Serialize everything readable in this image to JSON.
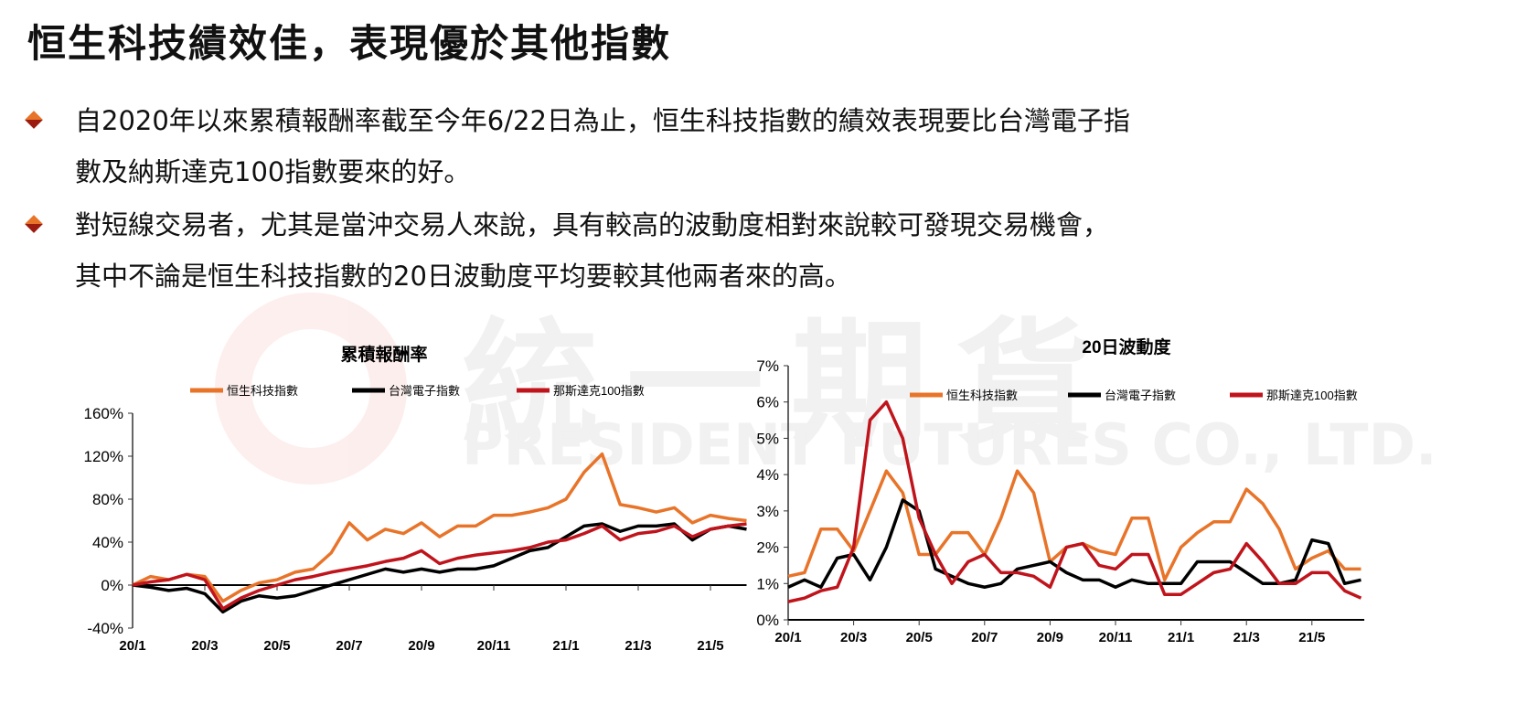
{
  "title": "恒生科技績效佳，表現優於其他指數",
  "bullets": [
    {
      "lines": [
        "自2020年以來累積報酬率截至今年6/22日為止，恒生科技指數的績效表現要比台灣電子指",
        "數及納斯達克100指數要來的好。"
      ]
    },
    {
      "lines": [
        "對短線交易者，尤其是當沖交易人來說，具有較高的波動度相對來說較可發現交易機會，",
        "其中不論是恒生科技指數的20日波動度平均要較其他兩者來的高。"
      ]
    }
  ],
  "watermark": {
    "cn": "統一期貨",
    "en": "PRESIDENT FUTURES CO., LTD."
  },
  "chart_data": [
    {
      "type": "line",
      "title": "累積報酬率",
      "xlabel": "",
      "ylabel": "",
      "x_start": "2020/1",
      "x_step_months": 0.5,
      "xticks": [
        "20/1",
        "20/3",
        "20/5",
        "20/7",
        "20/9",
        "20/11",
        "21/1",
        "21/3",
        "21/5"
      ],
      "yticks": [
        "-40%",
        "0%",
        "40%",
        "80%",
        "120%",
        "160%"
      ],
      "ylim": [
        -40,
        160
      ],
      "legend": "top",
      "series": [
        {
          "name": "恒生科技指數",
          "color": "#e8742a",
          "values": [
            0,
            8,
            5,
            10,
            8,
            -15,
            -5,
            2,
            5,
            12,
            15,
            30,
            58,
            42,
            52,
            48,
            58,
            45,
            55,
            55,
            65,
            65,
            68,
            72,
            80,
            105,
            122,
            75,
            72,
            68,
            72,
            58,
            65,
            62,
            60
          ]
        },
        {
          "name": "台灣電子指數",
          "color": "#000000",
          "values": [
            0,
            -2,
            -5,
            -3,
            -8,
            -25,
            -15,
            -10,
            -12,
            -10,
            -5,
            0,
            5,
            10,
            15,
            12,
            15,
            12,
            15,
            15,
            18,
            25,
            32,
            35,
            45,
            55,
            57,
            50,
            55,
            55,
            57,
            42,
            52,
            55,
            52
          ]
        },
        {
          "name": "那斯達克100指數",
          "color": "#c0141c",
          "values": [
            0,
            3,
            5,
            10,
            5,
            -22,
            -12,
            -5,
            0,
            5,
            8,
            12,
            15,
            18,
            22,
            25,
            32,
            20,
            25,
            28,
            30,
            32,
            35,
            40,
            42,
            48,
            55,
            42,
            48,
            50,
            55,
            45,
            52,
            55,
            57
          ]
        }
      ]
    },
    {
      "type": "line",
      "title": "20日波動度",
      "xlabel": "",
      "ylabel": "",
      "x_start": "2020/1",
      "x_step_months": 0.5,
      "xticks": [
        "20/1",
        "20/3",
        "20/5",
        "20/7",
        "20/9",
        "20/11",
        "21/1",
        "21/3",
        "21/5"
      ],
      "yticks": [
        "0%",
        "1%",
        "2%",
        "3%",
        "4%",
        "5%",
        "6%",
        "7%"
      ],
      "ylim": [
        0,
        7
      ],
      "legend": "top",
      "series": [
        {
          "name": "恒生科技指數",
          "color": "#e8742a",
          "values": [
            1.2,
            1.3,
            2.5,
            2.5,
            1.9,
            3.0,
            4.1,
            3.5,
            1.8,
            1.8,
            2.4,
            2.4,
            1.8,
            2.8,
            4.1,
            3.5,
            1.6,
            2.0,
            2.1,
            1.9,
            1.8,
            2.8,
            2.8,
            1.1,
            2.0,
            2.4,
            2.7,
            2.7,
            3.6,
            3.2,
            2.5,
            1.4,
            1.7,
            1.9,
            1.4,
            1.4
          ]
        },
        {
          "name": "台灣電子指數",
          "color": "#000000",
          "values": [
            0.9,
            1.1,
            0.9,
            1.7,
            1.8,
            1.1,
            2.0,
            3.3,
            3.0,
            1.4,
            1.2,
            1.0,
            0.9,
            1.0,
            1.4,
            1.5,
            1.6,
            1.3,
            1.1,
            1.1,
            0.9,
            1.1,
            1.0,
            1.0,
            1.0,
            1.6,
            1.6,
            1.6,
            1.3,
            1.0,
            1.0,
            1.1,
            2.2,
            2.1,
            1.0,
            1.1
          ]
        },
        {
          "name": "那斯達克100指數",
          "color": "#c0141c",
          "values": [
            0.5,
            0.6,
            0.8,
            0.9,
            2.0,
            5.5,
            6.0,
            5.0,
            2.8,
            1.8,
            1.0,
            1.6,
            1.8,
            1.3,
            1.3,
            1.2,
            0.9,
            2.0,
            2.1,
            1.5,
            1.4,
            1.8,
            1.8,
            0.7,
            0.7,
            1.0,
            1.3,
            1.4,
            2.1,
            1.6,
            1.0,
            1.0,
            1.3,
            1.3,
            0.8,
            0.6
          ]
        }
      ]
    }
  ]
}
